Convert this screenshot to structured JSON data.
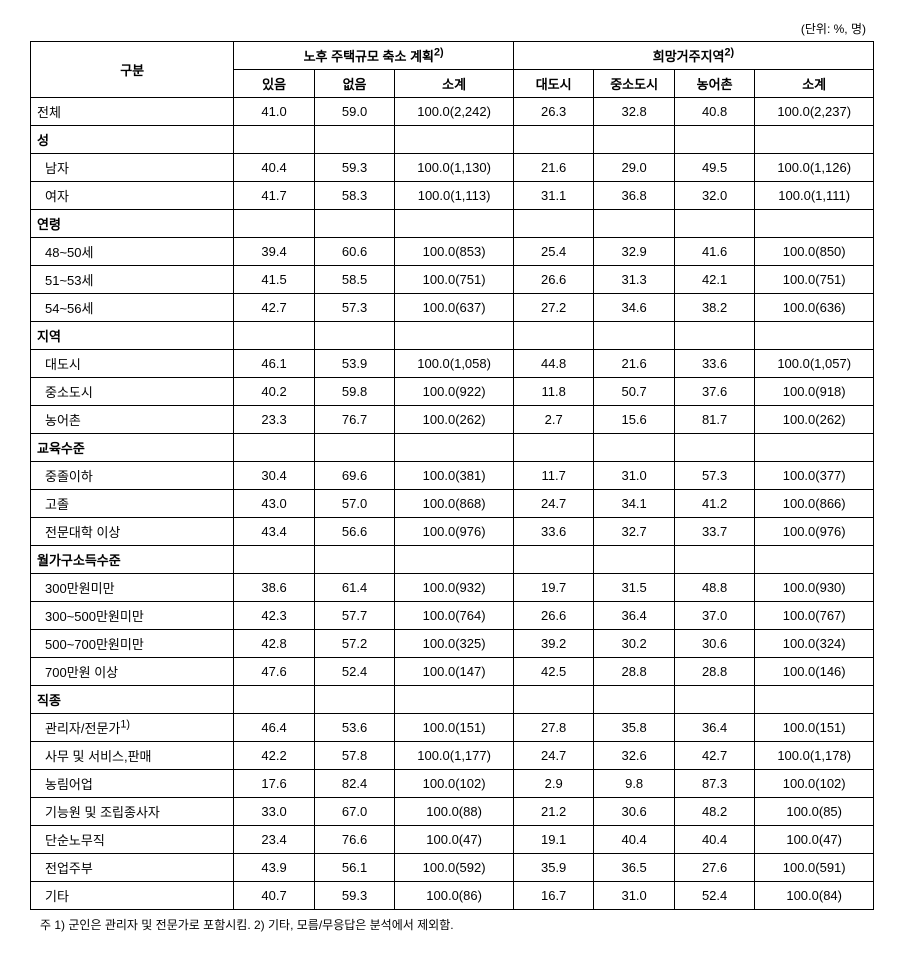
{
  "unit_label": "(단위: %, 명)",
  "headers": {
    "category": "구분",
    "group1": "노후 주택규모 축소 계획",
    "group1_sup": "2)",
    "group2": "희망거주지역",
    "group2_sup": "2)",
    "g1_yes": "있음",
    "g1_no": "없음",
    "g1_subtotal": "소계",
    "g2_big": "대도시",
    "g2_mid": "중소도시",
    "g2_rural": "농어촌",
    "g2_subtotal": "소계"
  },
  "sections": [
    {
      "label": "전체",
      "is_total": true,
      "rows": [
        {
          "label": "전체",
          "c": [
            "41.0",
            "59.0",
            "100.0(2,242)",
            "26.3",
            "32.8",
            "40.8",
            "100.0(2,237)"
          ]
        }
      ]
    },
    {
      "label": "성",
      "rows": [
        {
          "label": "남자",
          "c": [
            "40.4",
            "59.3",
            "100.0(1,130)",
            "21.6",
            "29.0",
            "49.5",
            "100.0(1,126)"
          ]
        },
        {
          "label": "여자",
          "c": [
            "41.7",
            "58.3",
            "100.0(1,113)",
            "31.1",
            "36.8",
            "32.0",
            "100.0(1,111)"
          ]
        }
      ]
    },
    {
      "label": "연령",
      "rows": [
        {
          "label": "48~50세",
          "c": [
            "39.4",
            "60.6",
            "100.0(853)",
            "25.4",
            "32.9",
            "41.6",
            "100.0(850)"
          ]
        },
        {
          "label": "51~53세",
          "c": [
            "41.5",
            "58.5",
            "100.0(751)",
            "26.6",
            "31.3",
            "42.1",
            "100.0(751)"
          ]
        },
        {
          "label": "54~56세",
          "c": [
            "42.7",
            "57.3",
            "100.0(637)",
            "27.2",
            "34.6",
            "38.2",
            "100.0(636)"
          ]
        }
      ]
    },
    {
      "label": "지역",
      "rows": [
        {
          "label": "대도시",
          "c": [
            "46.1",
            "53.9",
            "100.0(1,058)",
            "44.8",
            "21.6",
            "33.6",
            "100.0(1,057)"
          ]
        },
        {
          "label": "중소도시",
          "c": [
            "40.2",
            "59.8",
            "100.0(922)",
            "11.8",
            "50.7",
            "37.6",
            "100.0(918)"
          ]
        },
        {
          "label": "농어촌",
          "c": [
            "23.3",
            "76.7",
            "100.0(262)",
            "2.7",
            "15.6",
            "81.7",
            "100.0(262)"
          ]
        }
      ]
    },
    {
      "label": "교육수준",
      "rows": [
        {
          "label": "중졸이하",
          "c": [
            "30.4",
            "69.6",
            "100.0(381)",
            "11.7",
            "31.0",
            "57.3",
            "100.0(377)"
          ]
        },
        {
          "label": "고졸",
          "c": [
            "43.0",
            "57.0",
            "100.0(868)",
            "24.7",
            "34.1",
            "41.2",
            "100.0(866)"
          ]
        },
        {
          "label": "전문대학 이상",
          "c": [
            "43.4",
            "56.6",
            "100.0(976)",
            "33.6",
            "32.7",
            "33.7",
            "100.0(976)"
          ]
        }
      ]
    },
    {
      "label": "월가구소득수준",
      "rows": [
        {
          "label": "300만원미만",
          "c": [
            "38.6",
            "61.4",
            "100.0(932)",
            "19.7",
            "31.5",
            "48.8",
            "100.0(930)"
          ]
        },
        {
          "label": "300~500만원미만",
          "c": [
            "42.3",
            "57.7",
            "100.0(764)",
            "26.6",
            "36.4",
            "37.0",
            "100.0(767)"
          ]
        },
        {
          "label": "500~700만원미만",
          "c": [
            "42.8",
            "57.2",
            "100.0(325)",
            "39.2",
            "30.2",
            "30.6",
            "100.0(324)"
          ]
        },
        {
          "label": "700만원 이상",
          "c": [
            "47.6",
            "52.4",
            "100.0(147)",
            "42.5",
            "28.8",
            "28.8",
            "100.0(146)"
          ]
        }
      ]
    },
    {
      "label": "직종",
      "rows": [
        {
          "label": "관리자/전문가",
          "sup": "1)",
          "c": [
            "46.4",
            "53.6",
            "100.0(151)",
            "27.8",
            "35.8",
            "36.4",
            "100.0(151)"
          ]
        },
        {
          "label": "사무 및 서비스,판매",
          "c": [
            "42.2",
            "57.8",
            "100.0(1,177)",
            "24.7",
            "32.6",
            "42.7",
            "100.0(1,178)"
          ]
        },
        {
          "label": "농림어업",
          "c": [
            "17.6",
            "82.4",
            "100.0(102)",
            "2.9",
            "9.8",
            "87.3",
            "100.0(102)"
          ]
        },
        {
          "label": "기능원 및 조립종사자",
          "c": [
            "33.0",
            "67.0",
            "100.0(88)",
            "21.2",
            "30.6",
            "48.2",
            "100.0(85)"
          ]
        },
        {
          "label": "단순노무직",
          "c": [
            "23.4",
            "76.6",
            "100.0(47)",
            "19.1",
            "40.4",
            "40.4",
            "100.0(47)"
          ]
        },
        {
          "label": "전업주부",
          "c": [
            "43.9",
            "56.1",
            "100.0(592)",
            "35.9",
            "36.5",
            "27.6",
            "100.0(591)"
          ]
        },
        {
          "label": "기타",
          "c": [
            "40.7",
            "59.3",
            "100.0(86)",
            "16.7",
            "31.0",
            "52.4",
            "100.0(84)"
          ]
        }
      ]
    }
  ],
  "notes": "주 1) 군인은 관리자 및 전문가로 포함시킴.   2) 기타, 모름/무응답은 분석에서 제외함."
}
